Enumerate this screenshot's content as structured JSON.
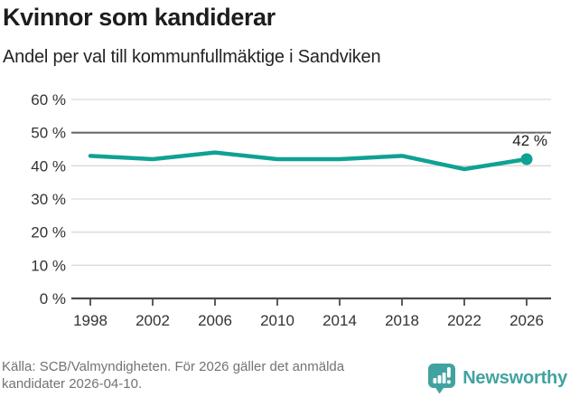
{
  "chart_data": {
    "type": "line",
    "title": "Kvinnor som kandiderar",
    "subtitle": "Andel per val till kommunfullmäktige i Sandviken",
    "x": [
      1998,
      2002,
      2006,
      2010,
      2014,
      2018,
      2022,
      2026
    ],
    "x_labels": [
      "1998",
      "2002",
      "2006",
      "2010",
      "2014",
      "2018",
      "2022",
      "2026"
    ],
    "values": [
      43,
      42,
      44,
      42,
      42,
      43,
      39,
      42
    ],
    "unit": "%",
    "ylim": [
      0,
      60
    ],
    "ytick_step": 10,
    "ytick_labels": [
      "0 %",
      "10 %",
      "20 %",
      "30 %",
      "40 %",
      "50 %",
      "60 %"
    ],
    "reference_line": 50,
    "end_label": "42 %",
    "grid": true,
    "legend": "none",
    "colors": {
      "line": "#0fa194",
      "reference_line": "#6b6b6b",
      "gridline": "#d9d9d9",
      "axis": "#4a4a4a",
      "tick_text": "#333333",
      "title_text": "#1d1d1b",
      "brand_teal": "#41a3a0"
    }
  },
  "footer": {
    "source": "Källa: SCB/Valmyndigheten. För 2026 gäller det anmälda kandidater 2026-04-10.",
    "brand": "Newsworthy"
  }
}
